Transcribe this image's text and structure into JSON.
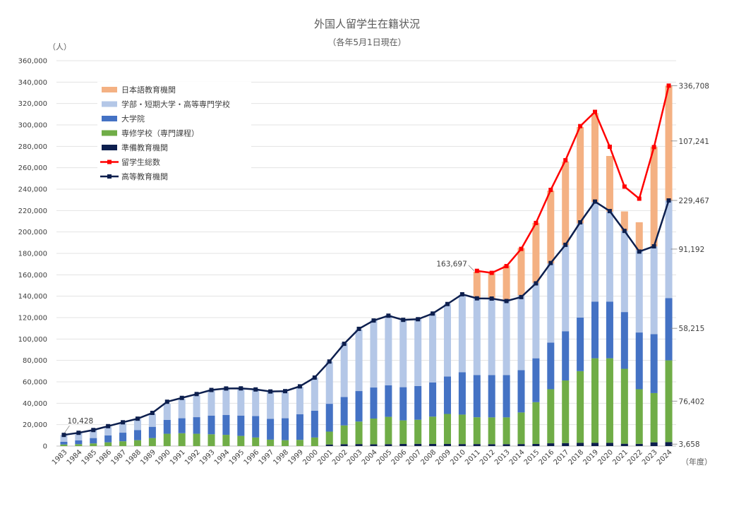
{
  "chart_data": {
    "type": "bar",
    "title": "外国人留学生在籍状況",
    "subtitle": "（各年5月1日現在）",
    "ylabel": "（人）",
    "xlabel": "（年度）",
    "ylim": [
      0,
      360000
    ],
    "ytick_step": 20000,
    "grid": true,
    "legend_position": "top-left",
    "categories": [
      "1983",
      "1984",
      "1985",
      "1986",
      "1987",
      "1988",
      "1989",
      "1990",
      "1991",
      "1992",
      "1993",
      "1994",
      "1995",
      "1996",
      "1997",
      "1998",
      "1999",
      "2000",
      "2001",
      "2002",
      "2003",
      "2004",
      "2005",
      "2006",
      "2007",
      "2008",
      "2009",
      "2010",
      "2011",
      "2012",
      "2013",
      "2014",
      "2015",
      "2016",
      "2017",
      "2018",
      "2019",
      "2020",
      "2021",
      "2022",
      "2023",
      "2024"
    ],
    "series": [
      {
        "name": "準備教育機関",
        "kind": "bar",
        "color": "#0d1f4e",
        "values": [
          0,
          0,
          0,
          0,
          0,
          0,
          0,
          0,
          0,
          0,
          0,
          0,
          0,
          0,
          0,
          0,
          0,
          0,
          1500,
          1800,
          1900,
          1700,
          1800,
          2000,
          2100,
          2000,
          2000,
          1900,
          1900,
          1800,
          1800,
          1900,
          2000,
          2600,
          2800,
          3000,
          3000,
          3000,
          2200,
          2100,
          3500,
          3658
        ]
      },
      {
        "name": "専修学校（専門課程）",
        "kind": "bar",
        "color": "#70ad47",
        "values": [
          1500,
          1800,
          2500,
          3500,
          4500,
          5500,
          7500,
          11500,
          12000,
          11500,
          11000,
          10500,
          9500,
          8000,
          6000,
          5500,
          5800,
          8000,
          12000,
          17500,
          21000,
          24000,
          25500,
          22000,
          22500,
          25500,
          28000,
          27500,
          25000,
          25000,
          25000,
          29500,
          39000,
          50500,
          58500,
          67000,
          79000,
          79000,
          70000,
          51000,
          46000,
          76402
        ]
      },
      {
        "name": "大学院",
        "kind": "bar",
        "color": "#4472c4",
        "values": [
          2500,
          3500,
          5000,
          6500,
          8000,
          9500,
          10500,
          13000,
          14000,
          15500,
          17500,
          18500,
          19000,
          20000,
          19500,
          20500,
          24000,
          25000,
          26000,
          26500,
          28500,
          29000,
          29500,
          31000,
          31500,
          32000,
          35000,
          39500,
          39500,
          39500,
          39500,
          39500,
          41000,
          43500,
          46000,
          50000,
          53000,
          53000,
          53000,
          53000,
          55000,
          58215
        ]
      },
      {
        "name": "学部・短期大学・高等専門学校",
        "kind": "bar",
        "color": "#b4c7e7",
        "values": [
          6428,
          7000,
          7500,
          8000,
          9000,
          10500,
          12500,
          15000,
          18000,
          20500,
          23500,
          24500,
          25000,
          25000,
          25000,
          24500,
          25500,
          31000,
          39500,
          50500,
          57500,
          63000,
          65500,
          62500,
          62500,
          64500,
          68000,
          72500,
          71500,
          71500,
          70500,
          70000,
          70500,
          74000,
          80500,
          88000,
          93000,
          84000,
          76000,
          77000,
          82000,
          91192
        ]
      },
      {
        "name": "日本語教育機関",
        "kind": "bar",
        "color": "#f4b183",
        "values": [
          0,
          0,
          0,
          0,
          0,
          0,
          0,
          0,
          0,
          0,
          0,
          0,
          0,
          0,
          0,
          0,
          0,
          0,
          0,
          0,
          0,
          0,
          0,
          0,
          0,
          0,
          0,
          0,
          25000,
          24000,
          32000,
          44000,
          56000,
          68000,
          78000,
          90000,
          83000,
          52000,
          18000,
          26000,
          93000,
          107241
        ]
      },
      {
        "name": "留学生総数",
        "kind": "line",
        "color": "#ff0000",
        "show_from_index": 28,
        "values": [
          10428,
          12400,
          15000,
          18600,
          22200,
          25600,
          31000,
          41400,
          45000,
          48600,
          52400,
          53800,
          53900,
          52900,
          51000,
          51300,
          55800,
          64000,
          79000,
          95550,
          109500,
          117300,
          121800,
          117900,
          118500,
          123800,
          132700,
          141800,
          163697,
          161800,
          168100,
          184200,
          208400,
          239300,
          267000,
          298900,
          312200,
          279600,
          242400,
          231100,
          279300,
          336708
        ]
      },
      {
        "name": "高等教育機関",
        "kind": "line",
        "color": "#0d1f4e",
        "values": [
          10428,
          12400,
          15000,
          18600,
          22200,
          25600,
          31000,
          41400,
          45000,
          48600,
          52400,
          53800,
          53900,
          52900,
          51000,
          51300,
          55800,
          64000,
          79000,
          95550,
          109500,
          117300,
          121800,
          117900,
          118500,
          123800,
          132700,
          141800,
          138000,
          137800,
          135500,
          139200,
          152000,
          171000,
          188000,
          209000,
          228400,
          219500,
          201000,
          181700,
          186600,
          229467
        ]
      }
    ],
    "annotations": {
      "first_total": "10,428",
      "total_2011": "163,697",
      "right_labels": [
        {
          "text": "336,708",
          "y": 336708
        },
        {
          "text": "107,241",
          "y": 285000
        },
        {
          "text": "229,467",
          "y": 229467
        },
        {
          "text": "91,192",
          "y": 184000
        },
        {
          "text": "58,215",
          "y": 110000
        },
        {
          "text": "76,402",
          "y": 42000
        },
        {
          "text": "3,658",
          "y": 1829
        }
      ]
    }
  }
}
